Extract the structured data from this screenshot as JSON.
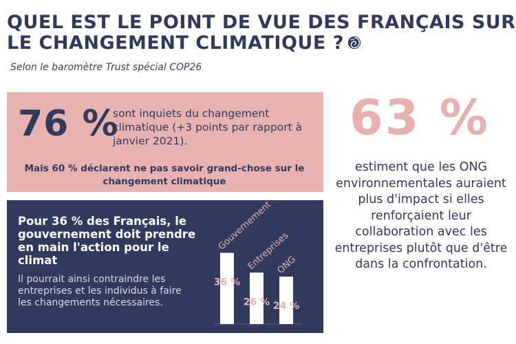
{
  "header": {
    "title_line1": "QUEL EST LE POINT DE VUE DES FRANÇAIS SUR",
    "title_line2": "LE CHANGEMENT CLIMATIQUE ?",
    "subtitle": "Selon le baromètre Trust spécial COP26",
    "icon": "spiral-logo-icon"
  },
  "worry_box": {
    "percent": "76 %",
    "text": "sont inquiets du changement climatique (+3 points par rapport à janvier 2021).",
    "knowledge_text": "Mais 60 % déclarent ne pas savoir grand-chose sur le changement climatique"
  },
  "government_box": {
    "heading": "Pour 36 % des Français, le gouvernement doit prendre en main l'action pour le climat",
    "body": "Il pourrait ainsi contraindre les entreprises et les individus à faire les changements nécessaires."
  },
  "ngo_box": {
    "percent": "63 %",
    "text": "estiment que les ONG environnementales auraient plus d'impact si elles renforçaient leur collaboration avec les entreprises plutôt que d'être dans la confrontation."
  },
  "colors": {
    "navy": "#2f3a5c",
    "pink": "#e7b2b0",
    "pink_text": "#e8b0ae",
    "white": "#ffffff"
  },
  "chart_data": {
    "type": "bar",
    "categories": [
      "Gouvernement",
      "Entreprises",
      "ONG"
    ],
    "values": [
      36,
      26,
      24
    ],
    "value_labels": [
      "36 %",
      "26 %",
      "24 %"
    ],
    "ylim": [
      0,
      40
    ],
    "grid": false,
    "legend": "none"
  }
}
